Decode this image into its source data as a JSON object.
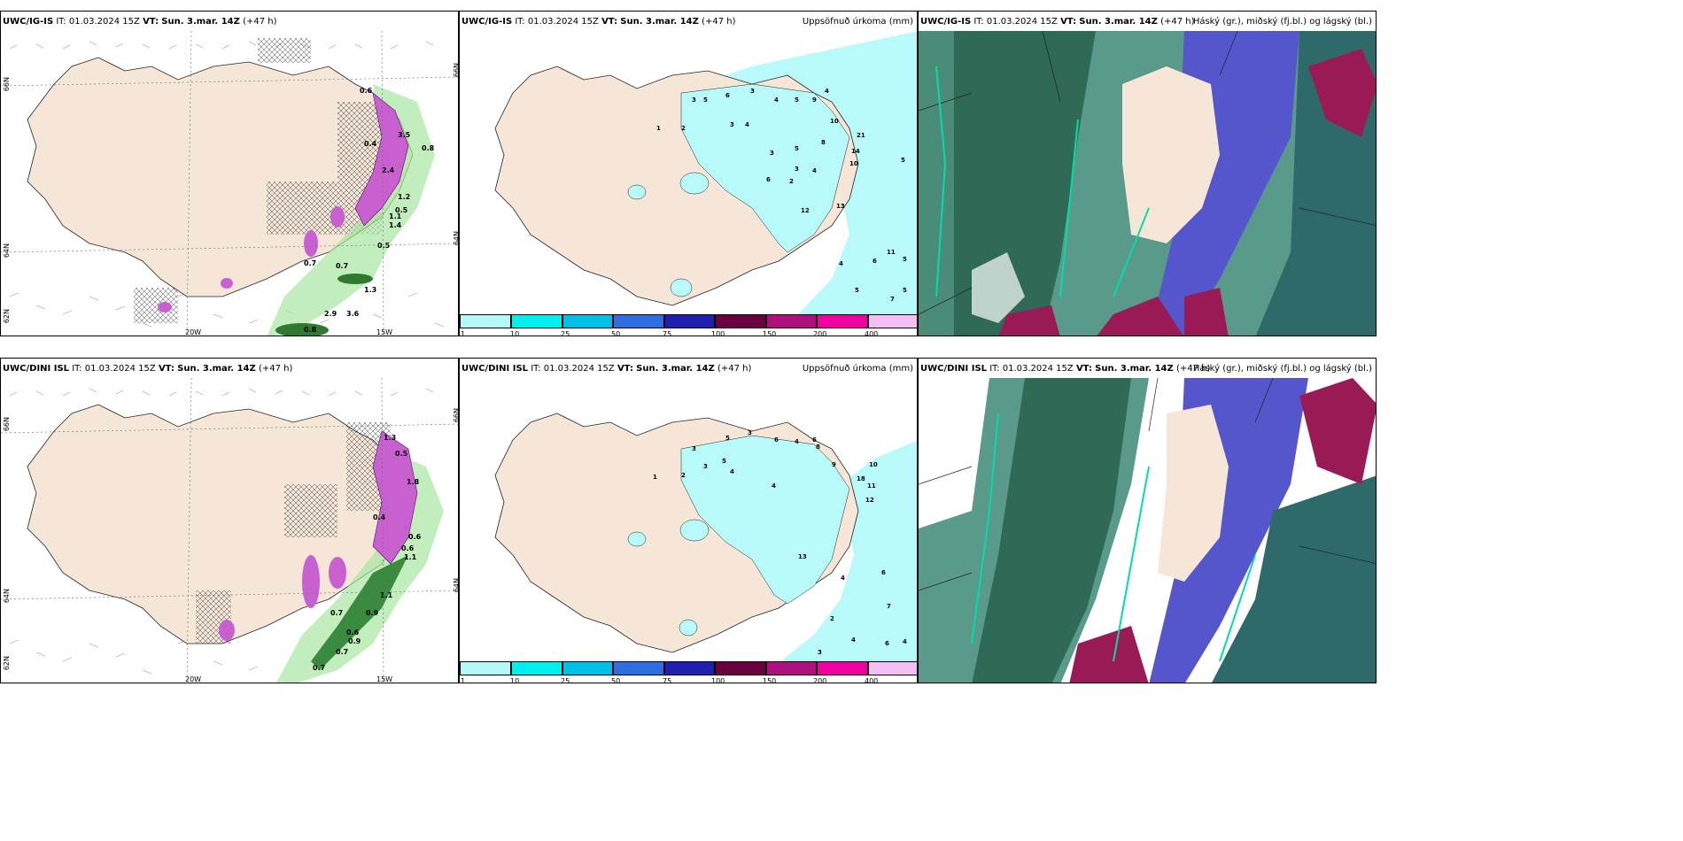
{
  "rows": [
    {
      "model": "UWC/IG-IS",
      "it_label": "IT:",
      "it_value": "01.03.2024 15Z",
      "vt_label": "VT:",
      "vt_value": "Sun. 3.mar. 14Z",
      "lead": "(+47 h)"
    },
    {
      "model": "UWC/DINI ISL",
      "it_label": "IT:",
      "it_value": "01.03.2024 15Z",
      "vt_label": "VT:",
      "vt_value": "Sun. 3.mar. 14Z",
      "lead": "(+47 h)"
    }
  ],
  "precip_title": "Uppsöfnuð úrkoma (mm)",
  "cloud_title": "Háský (gr.), miðský (fj.bl.) og lágský (bl.)",
  "axes": {
    "lat66": "66N",
    "lat64": "64N",
    "lat62": "62N",
    "lon20": "20W",
    "lon15": "15W"
  },
  "legend": {
    "ticks": [
      "1",
      "10",
      "25",
      "50",
      "75",
      "100",
      "150",
      "200",
      "400"
    ],
    "colors": [
      "#b4f8f8",
      "#00f0f0",
      "#00c0e8",
      "#2e6ee0",
      "#2020b0",
      "#6a0040",
      "#b0107e",
      "#f000a0",
      "#f4c0f4"
    ]
  },
  "colors": {
    "land": "#f5e6d7",
    "sea": "#ffffff",
    "precip_sea": "#b8fafa",
    "snow": "#c860d0",
    "rain": "#3aa040"
  },
  "snow_labels_top": [
    "0.6",
    "3.5",
    "0.4",
    "2.4",
    "1.1",
    "1.2",
    "0.5",
    "1.4",
    "0.5",
    "0.7",
    "1.3",
    "0.8",
    "2.9",
    "3.6",
    "0.7",
    "0.8"
  ],
  "snow_labels_bottom": [
    "1.3",
    "0.5",
    "0.4",
    "1.1",
    "0.6",
    "0.6",
    "1.8",
    "0.7",
    "0.9",
    "0.6",
    "0.9",
    "0.7",
    "0.7",
    "1.1"
  ],
  "precip_numbers_top": [
    "1",
    "3",
    "5",
    "6",
    "3",
    "4",
    "5",
    "4",
    "2",
    "3",
    "4",
    "5",
    "3",
    "3",
    "2",
    "9",
    "10",
    "21",
    "14",
    "10",
    "5",
    "4",
    "6",
    "8",
    "11",
    "5",
    "13",
    "4",
    "12",
    "6",
    "7",
    "5",
    "5"
  ],
  "precip_numbers_bottom": [
    "1",
    "3",
    "5",
    "6",
    "3",
    "4",
    "5",
    "4",
    "2",
    "3",
    "4",
    "6",
    "8",
    "9",
    "10",
    "18",
    "11",
    "12",
    "7",
    "4",
    "6",
    "13",
    "2",
    "3",
    "4",
    "6",
    "4"
  ]
}
